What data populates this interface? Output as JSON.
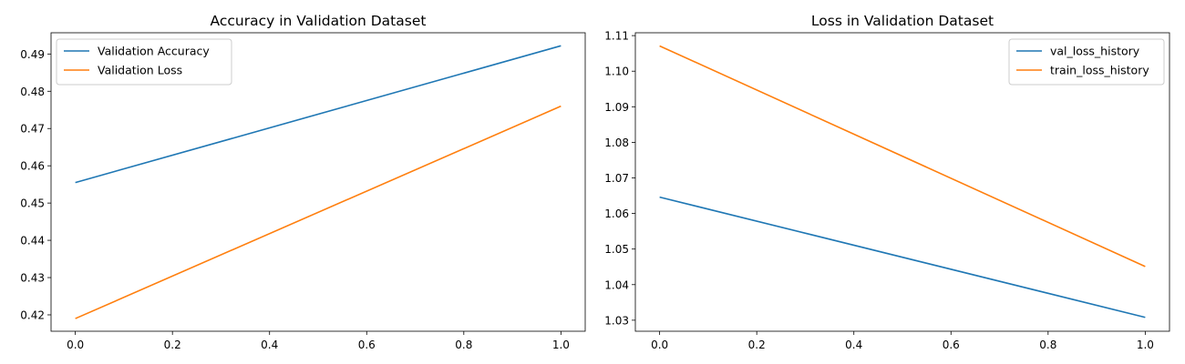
{
  "chart_data": [
    {
      "type": "line",
      "title": "Accuracy in Validation Dataset",
      "xlabel": "",
      "ylabel": "",
      "xlim": [
        -0.05,
        1.05
      ],
      "ylim": [
        0.4156,
        0.4957
      ],
      "xticks": [
        "0.0",
        "0.2",
        "0.4",
        "0.6",
        "0.8",
        "1.0"
      ],
      "yticks": [
        "0.42",
        "0.43",
        "0.44",
        "0.45",
        "0.46",
        "0.47",
        "0.48",
        "0.49"
      ],
      "grid": false,
      "legend_position": "upper-left",
      "x": [
        0,
        1
      ],
      "series": [
        {
          "name": "Validation Accuracy",
          "color": "#1f77b4",
          "values": [
            0.4555,
            0.4922
          ]
        },
        {
          "name": "Validation Loss",
          "color": "#ff7f0e",
          "values": [
            0.419,
            0.476
          ]
        }
      ]
    },
    {
      "type": "line",
      "title": "Loss in Validation Dataset",
      "xlabel": "",
      "ylabel": "",
      "xlim": [
        -0.05,
        1.05
      ],
      "ylim": [
        1.0269,
        1.1108
      ],
      "xticks": [
        "0.0",
        "0.2",
        "0.4",
        "0.6",
        "0.8",
        "1.0"
      ],
      "yticks": [
        "1.03",
        "1.04",
        "1.05",
        "1.06",
        "1.07",
        "1.08",
        "1.09",
        "1.10",
        "1.11"
      ],
      "grid": false,
      "legend_position": "upper-right",
      "x": [
        0,
        1
      ],
      "series": [
        {
          "name": "val_loss_history",
          "color": "#1f77b4",
          "values": [
            1.0646,
            1.0308
          ]
        },
        {
          "name": "train_loss_history",
          "color": "#ff7f0e",
          "values": [
            1.1071,
            1.0451
          ]
        }
      ]
    }
  ]
}
